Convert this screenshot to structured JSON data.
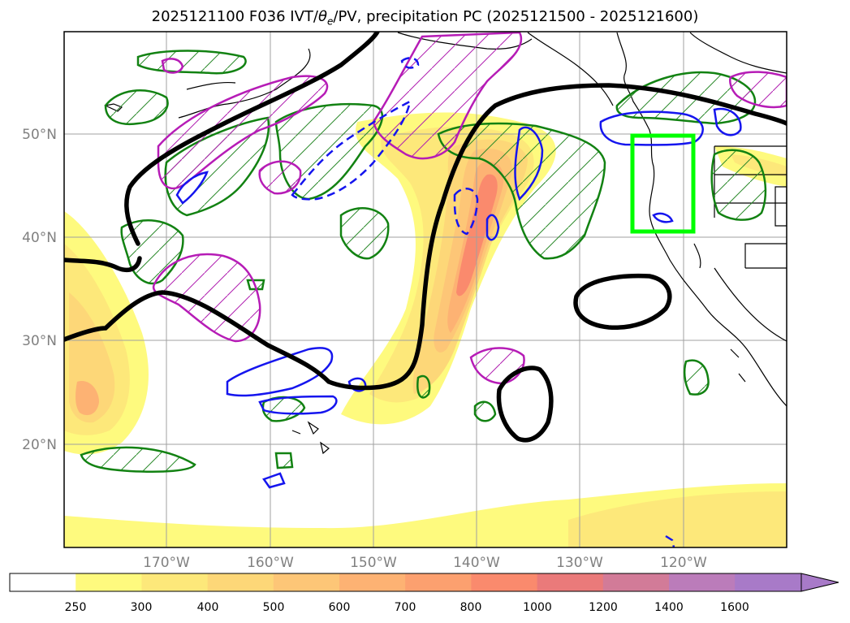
{
  "title": {
    "prefix": "2025121100 F036 IVT/",
    "theta": "θ",
    "theta_sub": "e",
    "suffix": "/PV, precipitation PC (2025121500 - 2025121600)"
  },
  "axes": {
    "lat_ticks": [
      "50°N",
      "40°N",
      "30°N",
      "20°N"
    ],
    "lon_ticks": [
      "170°W",
      "160°W",
      "150°W",
      "140°W",
      "130°W",
      "120°W"
    ]
  },
  "colorbar": {
    "labels": [
      "250",
      "300",
      "400",
      "500",
      "600",
      "700",
      "800",
      "1000",
      "1200",
      "1400",
      "1600"
    ],
    "colors": [
      "#ffffff",
      "#fefa7e",
      "#fde87a",
      "#fdd778",
      "#fdc677",
      "#fdb273",
      "#fca06f",
      "#fa8a6d",
      "#ea7a7a",
      "#d27b98",
      "#bb7cba",
      "#a87ac8"
    ]
  },
  "highlight_box": {
    "color": "#00ff00"
  }
}
